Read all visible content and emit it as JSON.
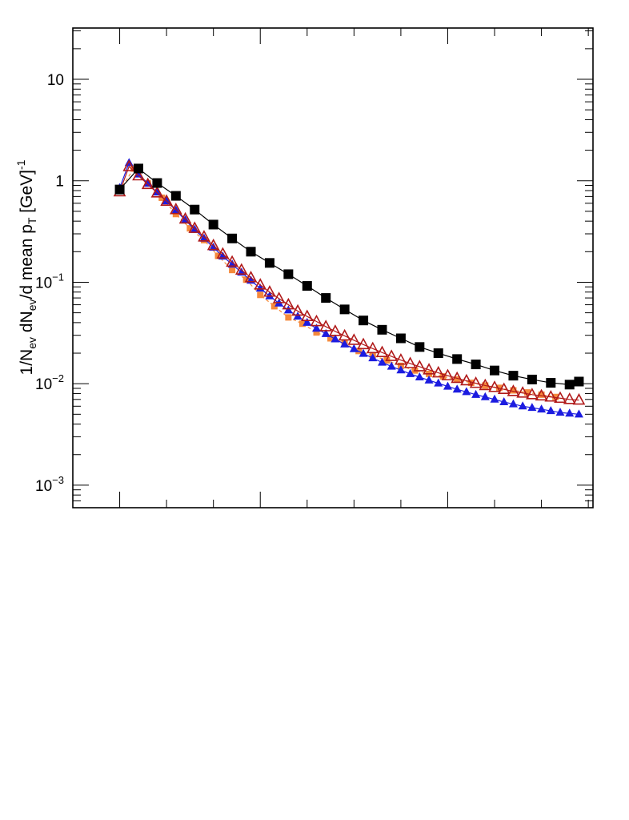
{
  "chart_data": {
    "type": "scatter",
    "title": "",
    "ylabel": {
      "parts": [
        "1/N",
        "ev",
        " dN",
        "ev",
        "/d mean p",
        "T",
        " [GeV]",
        "-1"
      ]
    },
    "xlabel": "",
    "y_scale": "log",
    "ylim": [
      0.0006,
      32
    ],
    "xlim": [
      -1.0,
      10.1
    ],
    "y_ticks": [
      {
        "value": 10,
        "base": "10",
        "exp": ""
      },
      {
        "value": 1,
        "base": "1",
        "exp": ""
      },
      {
        "value": 0.1,
        "base": "10",
        "exp": "-1"
      },
      {
        "value": 0.01,
        "base": "10",
        "exp": "-2"
      },
      {
        "value": 0.001,
        "base": "10",
        "exp": "-3"
      }
    ],
    "x_major_ticks": [
      0,
      3,
      7
    ],
    "grid": false,
    "series": [
      {
        "marker": "square-small",
        "color": "#f58a3c",
        "x": [
          0.0,
          0.3,
          0.6,
          0.9,
          1.2,
          1.5,
          1.8,
          2.1,
          2.4,
          2.7,
          3.0,
          3.3,
          3.6,
          3.9,
          4.2,
          4.5,
          4.8,
          5.1,
          5.4,
          5.7,
          6.0,
          6.3,
          6.6,
          6.9,
          7.2,
          7.5,
          7.8,
          8.1,
          8.4,
          8.7,
          9.0,
          9.3
        ],
        "y": [
          0.8,
          1.32,
          0.94,
          0.68,
          0.47,
          0.34,
          0.26,
          0.182,
          0.132,
          0.106,
          0.075,
          0.058,
          0.045,
          0.039,
          0.032,
          0.028,
          0.025,
          0.021,
          0.019,
          0.017,
          0.015,
          0.0135,
          0.0125,
          0.0118,
          0.011,
          0.0102,
          0.0096,
          0.0091,
          0.0086,
          0.0082,
          0.0078,
          0.0074
        ]
      },
      {
        "marker": "triangle-up-filled",
        "color": "#1c1ce0",
        "x": [
          0.0,
          0.2,
          0.4,
          0.6,
          0.8,
          1.0,
          1.2,
          1.4,
          1.6,
          1.8,
          2.0,
          2.2,
          2.4,
          2.6,
          2.8,
          3.0,
          3.2,
          3.4,
          3.6,
          3.8,
          4.0,
          4.2,
          4.4,
          4.6,
          4.8,
          5.0,
          5.2,
          5.4,
          5.6,
          5.8,
          6.0,
          6.2,
          6.4,
          6.6,
          6.8,
          7.0,
          7.2,
          7.4,
          7.6,
          7.8,
          8.0,
          8.2,
          8.4,
          8.6,
          8.8,
          9.0,
          9.2,
          9.4,
          9.6,
          9.8
        ],
        "y": [
          0.85,
          1.5,
          1.16,
          0.94,
          0.77,
          0.63,
          0.51,
          0.41,
          0.33,
          0.27,
          0.22,
          0.18,
          0.15,
          0.125,
          0.104,
          0.087,
          0.073,
          0.062,
          0.053,
          0.046,
          0.04,
          0.035,
          0.031,
          0.0275,
          0.0245,
          0.022,
          0.0198,
          0.0179,
          0.0162,
          0.0148,
          0.0136,
          0.0125,
          0.0116,
          0.0108,
          0.0101,
          0.0094,
          0.0088,
          0.0083,
          0.0078,
          0.0074,
          0.007,
          0.0066,
          0.0063,
          0.006,
          0.0058,
          0.0056,
          0.0054,
          0.0052,
          0.0051,
          0.005
        ]
      },
      {
        "marker": "triangle-up-open",
        "color": "#b01a1a",
        "x": [
          0.0,
          0.2,
          0.4,
          0.6,
          0.8,
          1.0,
          1.2,
          1.4,
          1.6,
          1.8,
          2.0,
          2.2,
          2.4,
          2.6,
          2.8,
          3.0,
          3.2,
          3.4,
          3.6,
          3.8,
          4.0,
          4.2,
          4.4,
          4.6,
          4.8,
          5.0,
          5.2,
          5.4,
          5.6,
          5.8,
          6.0,
          6.2,
          6.4,
          6.6,
          6.8,
          7.0,
          7.2,
          7.4,
          7.6,
          7.8,
          8.0,
          8.2,
          8.4,
          8.6,
          8.8,
          9.0,
          9.2,
          9.4,
          9.6,
          9.8
        ],
        "y": [
          0.78,
          1.38,
          1.12,
          0.92,
          0.76,
          0.63,
          0.52,
          0.42,
          0.34,
          0.28,
          0.23,
          0.19,
          0.158,
          0.132,
          0.111,
          0.094,
          0.08,
          0.069,
          0.06,
          0.052,
          0.046,
          0.041,
          0.0365,
          0.0328,
          0.0296,
          0.0268,
          0.0243,
          0.0222,
          0.0203,
          0.0186,
          0.0171,
          0.0158,
          0.0147,
          0.0137,
          0.0128,
          0.012,
          0.0113,
          0.0107,
          0.0101,
          0.0096,
          0.0092,
          0.0088,
          0.0084,
          0.0081,
          0.0078,
          0.0076,
          0.0074,
          0.0072,
          0.007,
          0.0069
        ]
      },
      {
        "marker": "square-filled",
        "color": "#000000",
        "x": [
          0.0,
          0.4,
          0.8,
          1.2,
          1.6,
          2.0,
          2.4,
          2.8,
          3.2,
          3.6,
          4.0,
          4.4,
          4.8,
          5.2,
          5.6,
          6.0,
          6.4,
          6.8,
          7.2,
          7.6,
          8.0,
          8.4,
          8.8,
          9.2,
          9.6,
          9.8
        ],
        "y": [
          0.82,
          1.32,
          0.95,
          0.71,
          0.52,
          0.37,
          0.27,
          0.2,
          0.155,
          0.12,
          0.092,
          0.07,
          0.054,
          0.042,
          0.034,
          0.028,
          0.023,
          0.02,
          0.0175,
          0.0155,
          0.0135,
          0.012,
          0.011,
          0.0102,
          0.0098,
          0.0105
        ]
      }
    ]
  }
}
